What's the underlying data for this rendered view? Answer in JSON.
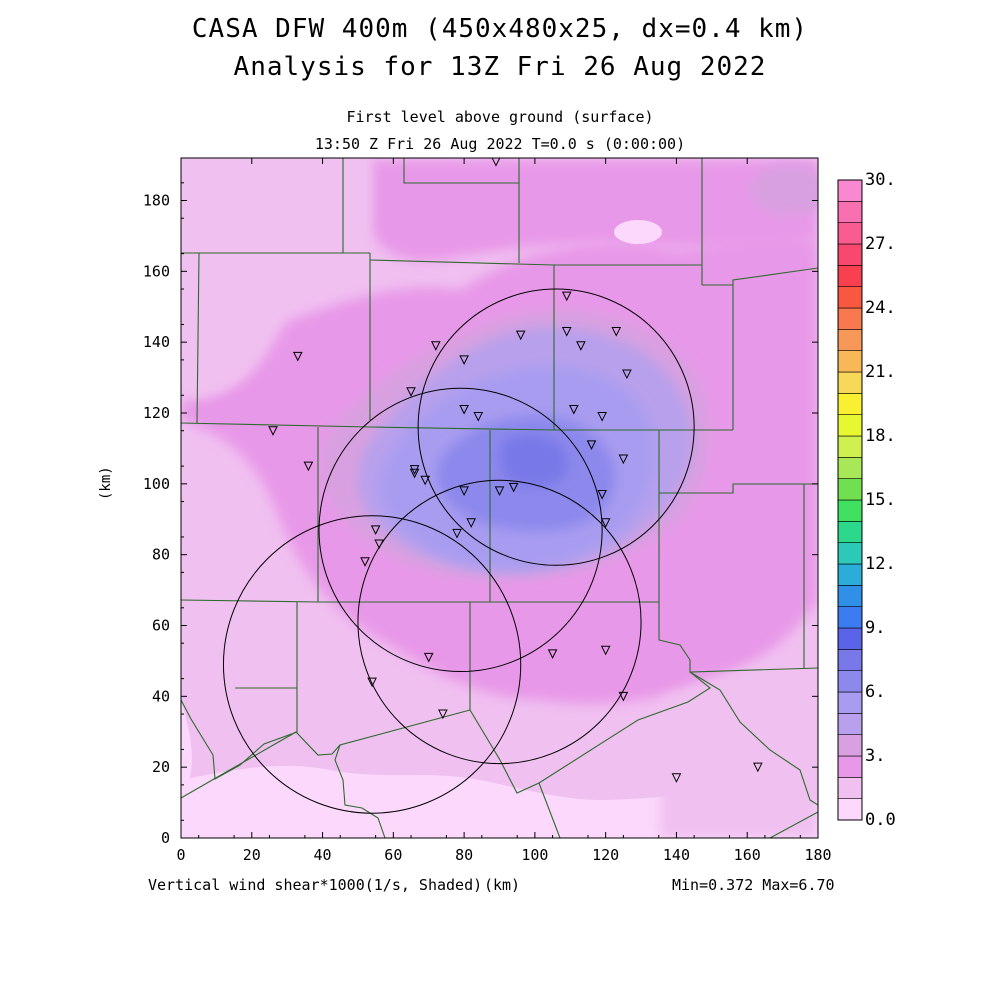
{
  "title": {
    "line1": "CASA DFW 400m (450x480x25, dx=0.4 km)",
    "line2": "Analysis for 13Z Fri 26 Aug 2022"
  },
  "subtitle": {
    "line1": "First level above ground (surface)",
    "line2": "13:50 Z Fri 26 Aug 2022   T=0.0 s (0:00:00)"
  },
  "axes": {
    "x_unit_label": "(km)",
    "y_unit_label": "(km)",
    "x_ticks": [
      "0",
      "20",
      "40",
      "60",
      "80",
      "100",
      "120",
      "140",
      "160",
      "180"
    ],
    "y_ticks": [
      "0",
      "20",
      "40",
      "60",
      "80",
      "100",
      "120",
      "140",
      "160",
      "180"
    ],
    "x_range": [
      0,
      180
    ],
    "y_range": [
      0,
      192
    ]
  },
  "footer": {
    "variable": "Vertical wind shear*1000(1/s, Shaded)",
    "stats": "Min=0.372 Max=6.70"
  },
  "colorbar": {
    "labels": [
      "0.0",
      "3.",
      "6.",
      "9.",
      "12.",
      "15.",
      "18.",
      "21.",
      "24.",
      "27.",
      "30."
    ],
    "colors": [
      "#fcd8fc",
      "#f0c0f0",
      "#e898e8",
      "#d8a0e0",
      "#b8a0ec",
      "#a89cf0",
      "#8c88ec",
      "#7878e8",
      "#5a64e8",
      "#3c7cf0",
      "#3090e8",
      "#2cacd8",
      "#2cc8b8",
      "#2cd88c",
      "#40e060",
      "#70e050",
      "#a8e858",
      "#d0f050",
      "#e8f830",
      "#f8f030",
      "#f8d858",
      "#f8b858",
      "#f89858",
      "#f87850",
      "#f85840",
      "#f84050",
      "#f84870",
      "#f85c90",
      "#f870b0",
      "#f888d0"
    ]
  },
  "chart_data": {
    "type": "heatmap",
    "variable": "Vertical wind shear*1000",
    "units": "1/s",
    "min": 0.372,
    "max": 6.7,
    "xlim": [
      0,
      180
    ],
    "ylim": [
      0,
      192
    ],
    "radar_rings": [
      {
        "center": [
          106,
          116
        ],
        "radius": 39
      },
      {
        "center": [
          79,
          87
        ],
        "radius": 40
      },
      {
        "center": [
          54,
          49
        ],
        "radius": 42
      },
      {
        "center": [
          90,
          61
        ],
        "radius": 40
      }
    ],
    "stations": [
      [
        89,
        191
      ],
      [
        109,
        153
      ],
      [
        33,
        136
      ],
      [
        72,
        139
      ],
      [
        80,
        135
      ],
      [
        96,
        142
      ],
      [
        109,
        143
      ],
      [
        113,
        139
      ],
      [
        123,
        143
      ],
      [
        126,
        131
      ],
      [
        65,
        126
      ],
      [
        80,
        121
      ],
      [
        84,
        119
      ],
      [
        111,
        121
      ],
      [
        119,
        119
      ],
      [
        26,
        115
      ],
      [
        36,
        105
      ],
      [
        66,
        104
      ],
      [
        66,
        103
      ],
      [
        69,
        101
      ],
      [
        116,
        111
      ],
      [
        125,
        107
      ],
      [
        80,
        98
      ],
      [
        90,
        98
      ],
      [
        94,
        99
      ],
      [
        119,
        97
      ],
      [
        120,
        89
      ],
      [
        55,
        87
      ],
      [
        56,
        83
      ],
      [
        78,
        86
      ],
      [
        82,
        89
      ],
      [
        52,
        78
      ],
      [
        70,
        51
      ],
      [
        105,
        52
      ],
      [
        120,
        53
      ],
      [
        54,
        44
      ],
      [
        74,
        35
      ],
      [
        125,
        40
      ],
      [
        140,
        17
      ],
      [
        163,
        20
      ]
    ]
  }
}
